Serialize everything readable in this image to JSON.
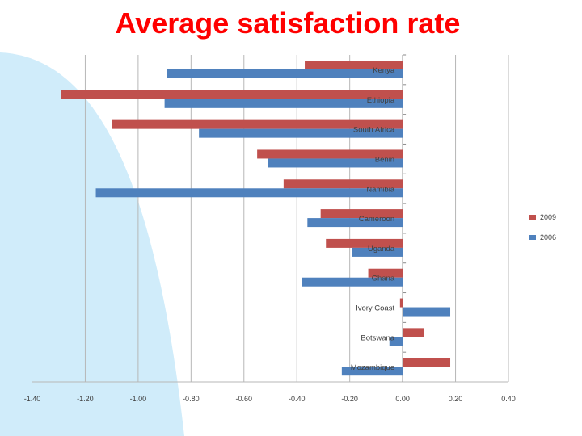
{
  "slide": {
    "title": "Average satisfaction rate",
    "title_color": "#ff0000",
    "decor_color": "#d0ecfa"
  },
  "chart_data": {
    "type": "bar",
    "orientation": "horizontal",
    "title": "Average satisfaction rate",
    "categories": [
      "Kenya",
      "Ethiopia",
      "South Africa",
      "Benin",
      "Namibia",
      "Cameroon",
      "Uganda",
      "Ghana",
      "Ivory Coast",
      "Botswana",
      "Mozambique"
    ],
    "series": [
      {
        "name": "2009",
        "color": "#c0504d",
        "values": [
          -0.37,
          -1.29,
          -1.1,
          -0.55,
          -0.45,
          -0.31,
          -0.29,
          -0.13,
          -0.01,
          0.08,
          0.18
        ]
      },
      {
        "name": "2006",
        "color": "#4f81bd",
        "values": [
          -0.89,
          -0.9,
          -0.77,
          -0.51,
          -1.16,
          -0.36,
          -0.19,
          -0.38,
          0.18,
          -0.05,
          -0.23
        ]
      }
    ],
    "xlim": [
      -1.4,
      0.4
    ],
    "x_ticks": [
      "-1.40",
      "-1.20",
      "-1.00",
      "-0.80",
      "-0.60",
      "-0.40",
      "-0.20",
      "0.00",
      "0.20",
      "0.40"
    ],
    "grid": "vertical",
    "legend": "right",
    "xlabel": "",
    "ylabel": ""
  }
}
